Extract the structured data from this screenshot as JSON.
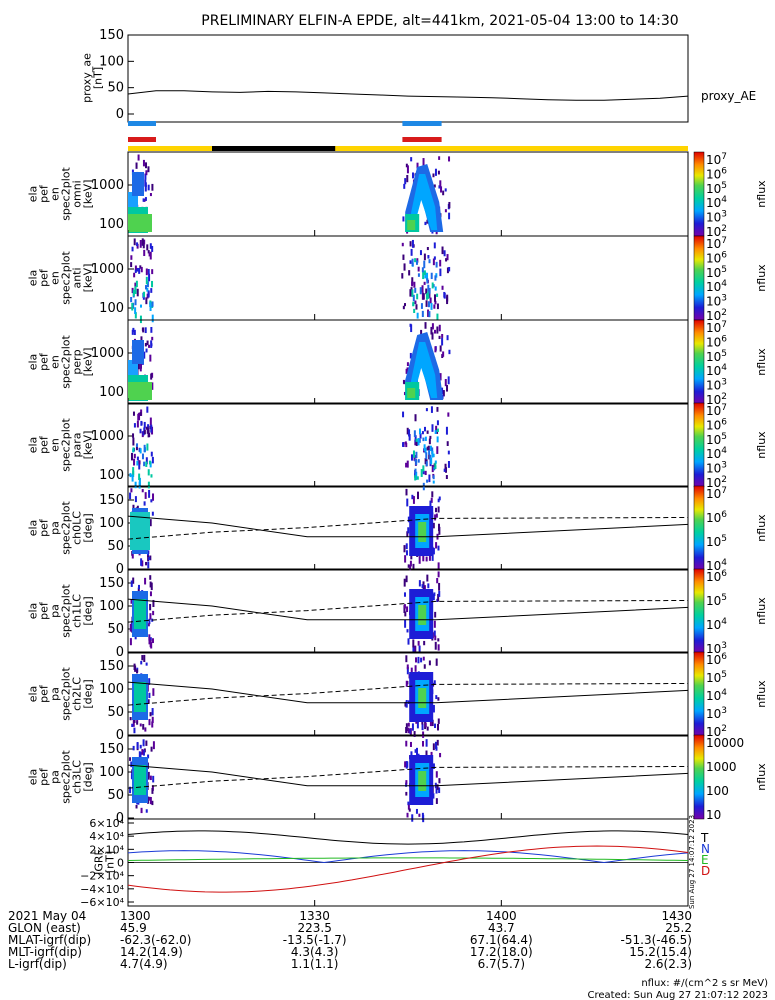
{
  "title": "PRELIMINARY ELFIN-A EPDE, alt=441km, 2021-05-04 13:00 to 14:30",
  "colors": {
    "blue_bar": "#1e88e5",
    "red_bar": "#d81b1b",
    "yellow_bar": "#ffd400",
    "black_bar": "#000000",
    "line": "#000000"
  },
  "chart_data": [
    {
      "type": "line",
      "name": "proxy_ae",
      "ylabel_lines": [
        "proxy_ae",
        "[nT]"
      ],
      "yticks": [
        "150",
        "100",
        "50",
        "0"
      ],
      "ylim": [
        0,
        150
      ],
      "legend": "proxy_AE",
      "x": [
        0,
        0.05,
        0.1,
        0.15,
        0.2,
        0.25,
        0.3,
        0.35,
        0.4,
        0.45,
        0.5,
        0.55,
        0.6,
        0.65,
        0.7,
        0.75,
        0.8,
        0.85,
        0.9,
        0.95,
        1.0
      ],
      "values": [
        38,
        44,
        44,
        42,
        41,
        43,
        42,
        40,
        38,
        36,
        34,
        33,
        32,
        31,
        29,
        27,
        26,
        26,
        28,
        30,
        34
      ]
    },
    {
      "type": "bar",
      "name": "status-bars",
      "blue": [
        [
          0,
          0.05
        ],
        [
          0.49,
          0.56
        ]
      ],
      "red": [
        [
          0,
          0.05
        ],
        [
          0.49,
          0.56
        ]
      ],
      "black": [
        [
          0.15,
          0.37
        ]
      ]
    },
    {
      "type": "heatmap",
      "name": "omni",
      "ylabel_lines": [
        "ela",
        "pef",
        "en",
        "spec2plot",
        "omni",
        "[keV]"
      ],
      "yticks": [
        "1000",
        "100"
      ],
      "cbar_label": "nflux",
      "cbar_ticks": [
        "10^7",
        "10^6",
        "10^5",
        "10^4",
        "10^3",
        "10^2"
      ]
    },
    {
      "type": "heatmap",
      "name": "anti",
      "ylabel_lines": [
        "ela",
        "pef",
        "en",
        "spec2plot",
        "anti",
        "[keV]"
      ],
      "yticks": [
        "1000",
        "100"
      ],
      "cbar_label": "nflux",
      "cbar_ticks": [
        "10^7",
        "10^6",
        "10^5",
        "10^4",
        "10^3",
        "10^2"
      ]
    },
    {
      "type": "heatmap",
      "name": "perp",
      "ylabel_lines": [
        "ela",
        "pef",
        "en",
        "spec2plot",
        "perp",
        "[keV]"
      ],
      "yticks": [
        "1000",
        "100"
      ],
      "cbar_label": "nflux",
      "cbar_ticks": [
        "10^7",
        "10^6",
        "10^5",
        "10^4",
        "10^3",
        "10^2"
      ]
    },
    {
      "type": "heatmap",
      "name": "para",
      "ylabel_lines": [
        "ela",
        "pef",
        "en",
        "spec2plot",
        "para",
        "[keV]"
      ],
      "yticks": [
        "1000",
        "100"
      ],
      "cbar_label": "nflux",
      "cbar_ticks": [
        "10^7",
        "10^6",
        "10^5",
        "10^4",
        "10^3",
        "10^2"
      ]
    },
    {
      "type": "heatmap",
      "name": "ch0LC",
      "ylabel_lines": [
        "ela",
        "pef",
        "pa",
        "spec2plot",
        "ch0LC",
        "[deg]"
      ],
      "yticks": [
        "150",
        "100",
        "50",
        "0"
      ],
      "cbar_label": "nflux",
      "cbar_ticks": [
        "10^7",
        "10^6",
        "10^5",
        "10^4"
      ]
    },
    {
      "type": "heatmap",
      "name": "ch1LC",
      "ylabel_lines": [
        "ela",
        "pef",
        "pa",
        "spec2plot",
        "ch1LC",
        "[deg]"
      ],
      "yticks": [
        "150",
        "100",
        "50",
        "0"
      ],
      "cbar_label": "nflux",
      "cbar_ticks": [
        "10^6",
        "10^5",
        "10^4",
        "10^3"
      ]
    },
    {
      "type": "heatmap",
      "name": "ch2LC",
      "ylabel_lines": [
        "ela",
        "pef",
        "pa",
        "spec2plot",
        "ch2LC",
        "[deg]"
      ],
      "yticks": [
        "150",
        "100",
        "50",
        "0"
      ],
      "cbar_label": "nflux",
      "cbar_ticks": [
        "10^6",
        "10^5",
        "10^4",
        "10^3",
        "10^2"
      ]
    },
    {
      "type": "heatmap",
      "name": "ch3LC",
      "ylabel_lines": [
        "ela",
        "pef",
        "pa",
        "spec2plot",
        "ch3LC",
        "[deg]"
      ],
      "yticks": [
        "150",
        "100",
        "50",
        "0"
      ],
      "cbar_label": "nflux",
      "cbar_ticks": [
        "10000",
        "1000",
        "100",
        "10"
      ]
    },
    {
      "type": "line",
      "name": "igrf",
      "ylabel_lines": [
        "IGRF",
        "[nT]"
      ],
      "yticks": [
        "6×10⁴",
        "4×10⁴",
        "2×10⁴",
        "0",
        "−2×10⁴",
        "−4×10⁴",
        "−6×10⁴"
      ],
      "ylim": [
        -60000,
        60000
      ],
      "legend": [
        {
          "label": "T",
          "color": "#000000"
        },
        {
          "label": "N",
          "color": "#1a3ad6"
        },
        {
          "label": "E",
          "color": "#22b922"
        },
        {
          "label": "D",
          "color": "#d01010"
        }
      ],
      "side_note": "Sun Aug 27 14:07:12 2023"
    }
  ],
  "xaxis": {
    "ticks": [
      "1300",
      "1330",
      "1400",
      "1430"
    ],
    "rows": [
      {
        "label": "2021 May 04",
        "values": [
          "1300",
          "1330",
          "1400",
          "1430"
        ]
      },
      {
        "label": "GLON (east)",
        "values": [
          "45.9",
          "223.5",
          "43.7",
          "25.2"
        ]
      },
      {
        "label": "MLAT-igrf(dip)",
        "values": [
          "-62.3(-62.0)",
          "-13.5(-1.7)",
          "67.1(64.4)",
          "-51.3(-46.5)"
        ]
      },
      {
        "label": "MLT-igrf(dip)",
        "values": [
          "14.2(14.9)",
          "4.3(4.3)",
          "17.2(18.0)",
          "15.2(15.4)"
        ]
      },
      {
        "label": "L-igrf(dip)",
        "values": [
          "4.7(4.9)",
          "1.1(1.1)",
          "6.7(5.7)",
          "2.6(2.3)"
        ]
      }
    ]
  },
  "footer": {
    "units": "nflux: #/(cm^2 s sr MeV)",
    "created": "Created: Sun Aug 27 21:07:12 2023"
  }
}
